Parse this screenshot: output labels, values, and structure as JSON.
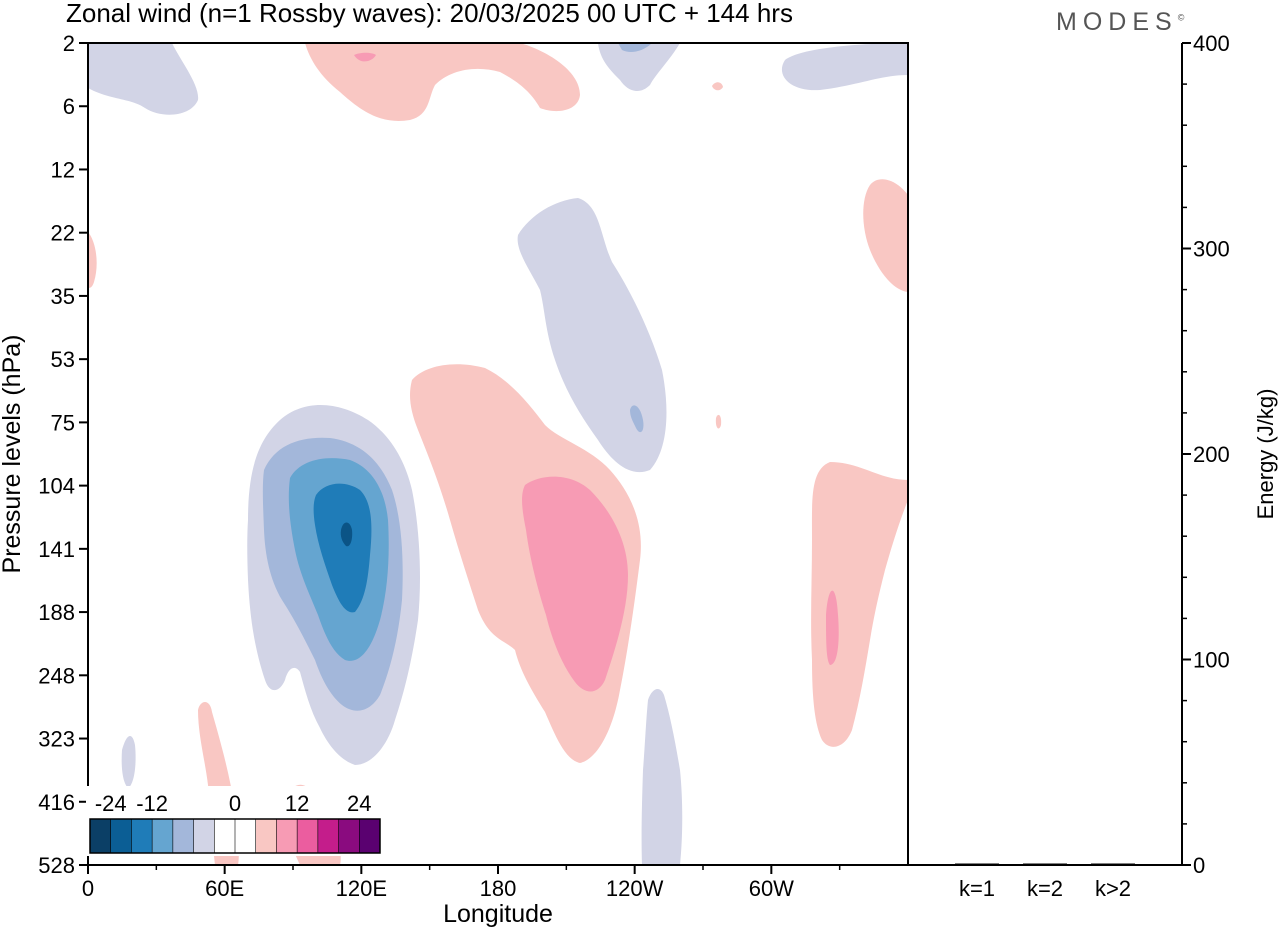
{
  "title": "Zonal wind (n=1 Rossby waves):  20/03/2025  00 UTC  + 144 hrs",
  "brand": "MODES",
  "brand_mark": "©",
  "colors": {
    "neg_lt": "#d2d4e6",
    "neg_2": "#a3b7da",
    "neg_3": "#65a5d0",
    "neg_4": "#1f7cb8",
    "neg_5": "#0b5486",
    "pos_lt": "#f9c7c3",
    "pos_2": "#f79bb4",
    "pos_3": "#eb5d9f",
    "pos_4": "#c41d8b",
    "pos_5": "#8a0b7f",
    "pos_6": "#5a0170"
  },
  "chart_data": [
    {
      "type": "heatmap",
      "title": "Zonal wind (n=1 Rossby waves):  20/03/2025  00 UTC  + 144 hrs",
      "xlabel": "Longitude",
      "ylabel": "Pressure levels (hPa)",
      "x_ticks": [
        "0",
        "60E",
        "120E",
        "180",
        "120W",
        "60W"
      ],
      "y_ticks": [
        "2",
        "6",
        "12",
        "22",
        "35",
        "53",
        "75",
        "104",
        "141",
        "188",
        "248",
        "323",
        "416",
        "528"
      ],
      "colorbar": {
        "tick_labels": [
          "-24",
          "-12",
          "0",
          "12",
          "24"
        ],
        "levels": [
          "-30",
          "-24",
          "-18",
          "-12",
          "-6",
          "-3",
          "0",
          "3",
          "6",
          "12",
          "18",
          "24",
          "30"
        ],
        "colors": [
          "#0b3f66",
          "#0b5e95",
          "#1f7cb8",
          "#65a5d0",
          "#a3b7da",
          "#d2d4e6",
          "#ffffff",
          "#ffffff",
          "#f9c7c3",
          "#f79bb4",
          "#eb5d9f",
          "#c41d8b",
          "#8a0b7f",
          "#5a0170"
        ]
      },
      "features": [
        {
          "kind": "negative",
          "lon": 115,
          "level": "141",
          "peak": -24
        },
        {
          "kind": "positive",
          "lon": 212,
          "level": "141",
          "peak": 12
        },
        {
          "kind": "positive",
          "lon": 325,
          "level": "188",
          "peak": 12
        },
        {
          "kind": "negative",
          "lon": 220,
          "level": "53",
          "peak": -6
        }
      ]
    },
    {
      "type": "bar",
      "ylabel": "Energy (J/kg)",
      "categories": [
        "k=1",
        "k=2",
        "k>2"
      ],
      "values": [
        0.5,
        0.4,
        0.4
      ],
      "ylim": [
        0,
        400
      ],
      "y_ticks": [
        "0",
        "100",
        "200",
        "300",
        "400"
      ]
    }
  ]
}
